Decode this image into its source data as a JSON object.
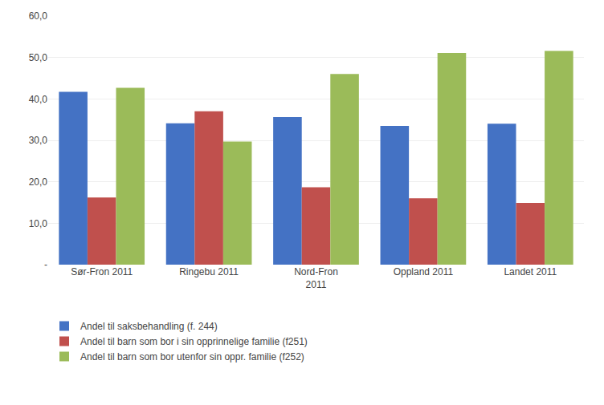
{
  "chart_data": {
    "type": "bar",
    "categories": [
      "Sør-Fron 2011",
      "Ringebu 2011",
      "Nord-Fron\n2011",
      "Oppland 2011",
      "Landet 2011"
    ],
    "series": [
      {
        "name": "Andel til saksbehandling (f. 244)",
        "color": "#4472C4",
        "values": [
          41.7,
          34.1,
          35.6,
          33.5,
          34.0
        ]
      },
      {
        "name": "Andel til barn som bor i sin opprinnelige familie (f251)",
        "color": "#C0504D",
        "values": [
          16.2,
          37.0,
          18.7,
          16.0,
          14.9
        ]
      },
      {
        "name": "Andel til barn som bor utenfor sin oppr. familie (f252)",
        "color": "#9BBB59",
        "values": [
          42.7,
          29.7,
          46.0,
          51.1,
          51.6
        ]
      }
    ],
    "ylim": [
      0,
      60
    ],
    "yticks": [
      {
        "value": 0,
        "label": "-"
      },
      {
        "value": 10,
        "label": "10,0"
      },
      {
        "value": 20,
        "label": "20,0"
      },
      {
        "value": 30,
        "label": "30,0"
      },
      {
        "value": 40,
        "label": "40,0"
      },
      {
        "value": 50,
        "label": "50,0"
      },
      {
        "value": 60,
        "label": "60,0"
      }
    ],
    "grid": true,
    "legend": "bottom"
  }
}
